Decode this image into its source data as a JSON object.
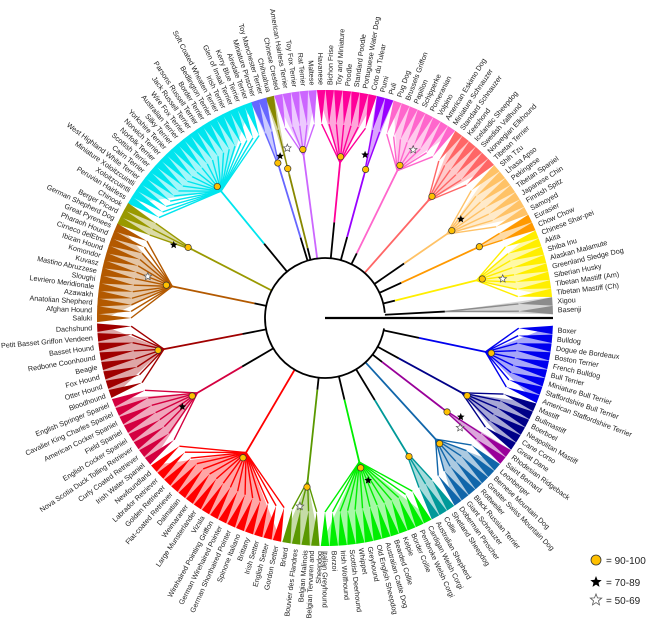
{
  "labels": [
    "Basenji",
    "Xigou",
    "Tibetan Mastiff (Ch)",
    "Tibetan Mastiff (Am)",
    "Siberian Husky",
    "Greenland Sledge Dog",
    "Alaskan Malamute",
    "Shiba Inu",
    "Akita",
    "Chinese Shar-pei",
    "Chow Chow",
    "Eurasier",
    "Samoyed",
    "Finnish Spitz",
    "Japanese Chin",
    "Tibetan Spaniel",
    "Pekingese",
    "Lhasa Apso",
    "Shih Tzu",
    "Tibetan Terrier",
    "Norwegian Elkhound",
    "Swedish Vallhund",
    "Icelandic Sheepdog",
    "Keeshond",
    "Standard Schnauzer",
    "Miniature Schnauzer",
    "American Eskimo Dog",
    "Volpino",
    "Pomeranian",
    "Schipperke",
    "Papillon",
    "Brussels Griffon",
    "Pug Dog",
    "Puli",
    "Pumi",
    "Coto du Tulear",
    "Portuguese Water Dog",
    "Standard Poodle",
    "Poodle",
    "Toy and Miniature",
    "Bichon Frise",
    "Havanese",
    "Maltese",
    "Rat Terrier",
    "Toy Fox Terrier",
    "American Hairless Terrier",
    "Chinese Crested",
    "Chihuahua",
    "Toy Manchester Terrier",
    "Miniature Pinscher",
    "Airedale Terrier",
    "Kerry Blue Terrier",
    "Glen of Imaal Terrier",
    "Irish Terrier",
    "Soft Coated Wheaten Terrier",
    "Bedlington Terrier",
    "Border Terrier",
    "Parsons Russell Terrier",
    "Jack Russell Terrier",
    "Wire Fox Terrier",
    "Australian Terrier",
    "Silky Terrier",
    "Yorkshire Terrier",
    "Norwich Terrier",
    "Norfolk Terrier",
    "Scottish Terrier",
    "Cairn Terrier",
    "West Highland White Terrier",
    "Miniature Xoloitzcuintli",
    "Xoloitzcuintli",
    "Peruvian Hairless",
    "Chinook",
    "Berger Picard",
    "German Shepherd Dog",
    "Great Pyrenees",
    "Pharaoh Hound",
    "Cirneco delEtna",
    "Ibizan Hound",
    "Komondor",
    "Kuvasz",
    "Mastino Abruzzese",
    "Sloughi",
    "Levriero Meridionale",
    "Azawakh",
    "Anatolian Shepherd",
    "Afghan Hound",
    "Saluki",
    "Dachshund",
    "Petit Basset Griffon Vendeen",
    "Basset Hound",
    "Redbone Coonhound",
    "Beagle",
    "Fox Hound",
    "Otter Hound",
    "Bloodhound",
    "English Springer Spaniel",
    "Cavalier King Charles Spaniel",
    "American Cocker Spaniel",
    "Field Spaniel",
    "English Cocker Spaniel",
    "Nova Scotia Duck Tolling Retriever",
    "Curly Coated Retriever",
    "Irish Water Spaniel",
    "Newfoundland",
    "Labrador Retriever",
    "Golden Retriever",
    "Flat-coated Retriever",
    "Dalmatian",
    "Weimaraner",
    "Large Munsterlander",
    "Vizsla",
    "Wirehaired Pointing Griffon",
    "German Wirehaired Pointer",
    "German Shorthaired Pointer",
    "Spinone Italiano",
    "Brittany",
    "Irish Setter",
    "English Setter",
    "Gordon Setter",
    "Briard",
    "Bouvier des Flandres",
    "Belgian Malinois",
    "Belgian Tervuren and Sheepdog",
    "Italian Greyhound",
    "Borzoi",
    "Irish Wolfhound",
    "Scottish Deerhound",
    "Whippet",
    "Greyhound",
    "Old English Sheepdog",
    "Australian Cattle Dog",
    "Bearded Collie",
    "Kelpie",
    "Border Collie",
    "Pembroke Welsh Corgi",
    "Cardigan Welsh Corgi",
    "Australian Shepherd",
    "Collie",
    "Shetland Sheepdog",
    "Doberman Pinscher",
    "Giant Schnauzer",
    "Black Russian Terrier",
    "Rottweiler",
    "Greater Swiss Mountain Dog",
    "Bernese Mountain Dog",
    "Leonberger",
    "Saint Bernard",
    "Rhodesian Ridgeback",
    "Great Dane",
    "Cane Corso",
    "Neapolitan Mastiff",
    "Boerboel",
    "Bullmastiff",
    "Mastiff",
    "American Staffordshire Terrier",
    "Staffordshire Bull Terrier",
    "Miniature Bull Terrier",
    "Bull Terrier",
    "French Bulldog",
    "Boston Terrier",
    "Dogue de Bordeaux",
    "Bulldog",
    "Boxer"
  ],
  "clades": [
    {
      "from": 0,
      "to": 1,
      "color": "#8c8c8c"
    },
    {
      "from": 2,
      "to": 9,
      "color": "#ffee00"
    },
    {
      "from": 10,
      "to": 11,
      "color": "#ff9900"
    },
    {
      "from": 12,
      "to": 18,
      "color": "#ffc266"
    },
    {
      "from": 19,
      "to": 24,
      "color": "#ff6666"
    },
    {
      "from": 25,
      "to": 32,
      "color": "#ff66cc"
    },
    {
      "from": 33,
      "to": 34,
      "color": "#9900ff"
    },
    {
      "from": 35,
      "to": 41,
      "color": "#ff0099"
    },
    {
      "from": 42,
      "to": 46,
      "color": "#cc66ff"
    },
    {
      "from": 47,
      "to": 47,
      "color": "#888800"
    },
    {
      "from": 48,
      "to": 49,
      "color": "#6666ff"
    },
    {
      "from": 50,
      "to": 70,
      "color": "#00e5ee"
    },
    {
      "from": 71,
      "to": 73,
      "color": "#999900"
    },
    {
      "from": 74,
      "to": 86,
      "color": "#b35900"
    },
    {
      "from": 87,
      "to": 94,
      "color": "#a00000"
    },
    {
      "from": 95,
      "to": 102,
      "color": "#d40040"
    },
    {
      "from": 103,
      "to": 118,
      "color": "#ff0000"
    },
    {
      "from": 119,
      "to": 122,
      "color": "#5a9900"
    },
    {
      "from": 123,
      "to": 135,
      "color": "#00ee00"
    },
    {
      "from": 136,
      "to": 138,
      "color": "#009999"
    },
    {
      "from": 139,
      "to": 145,
      "color": "#1166aa"
    },
    {
      "from": 146,
      "to": 147,
      "color": "#990099"
    },
    {
      "from": 148,
      "to": 153,
      "color": "#000088"
    },
    {
      "from": 154,
      "to": 162,
      "color": "#0000ee"
    }
  ],
  "legend": [
    {
      "symbol": "circle",
      "label": "= 90-100",
      "color": "#ffc000"
    },
    {
      "symbol": "black-star",
      "label": "= 70-89",
      "color": "#000000"
    },
    {
      "symbol": "white-star",
      "label": "= 50-69",
      "color": "#ffffff"
    }
  ]
}
